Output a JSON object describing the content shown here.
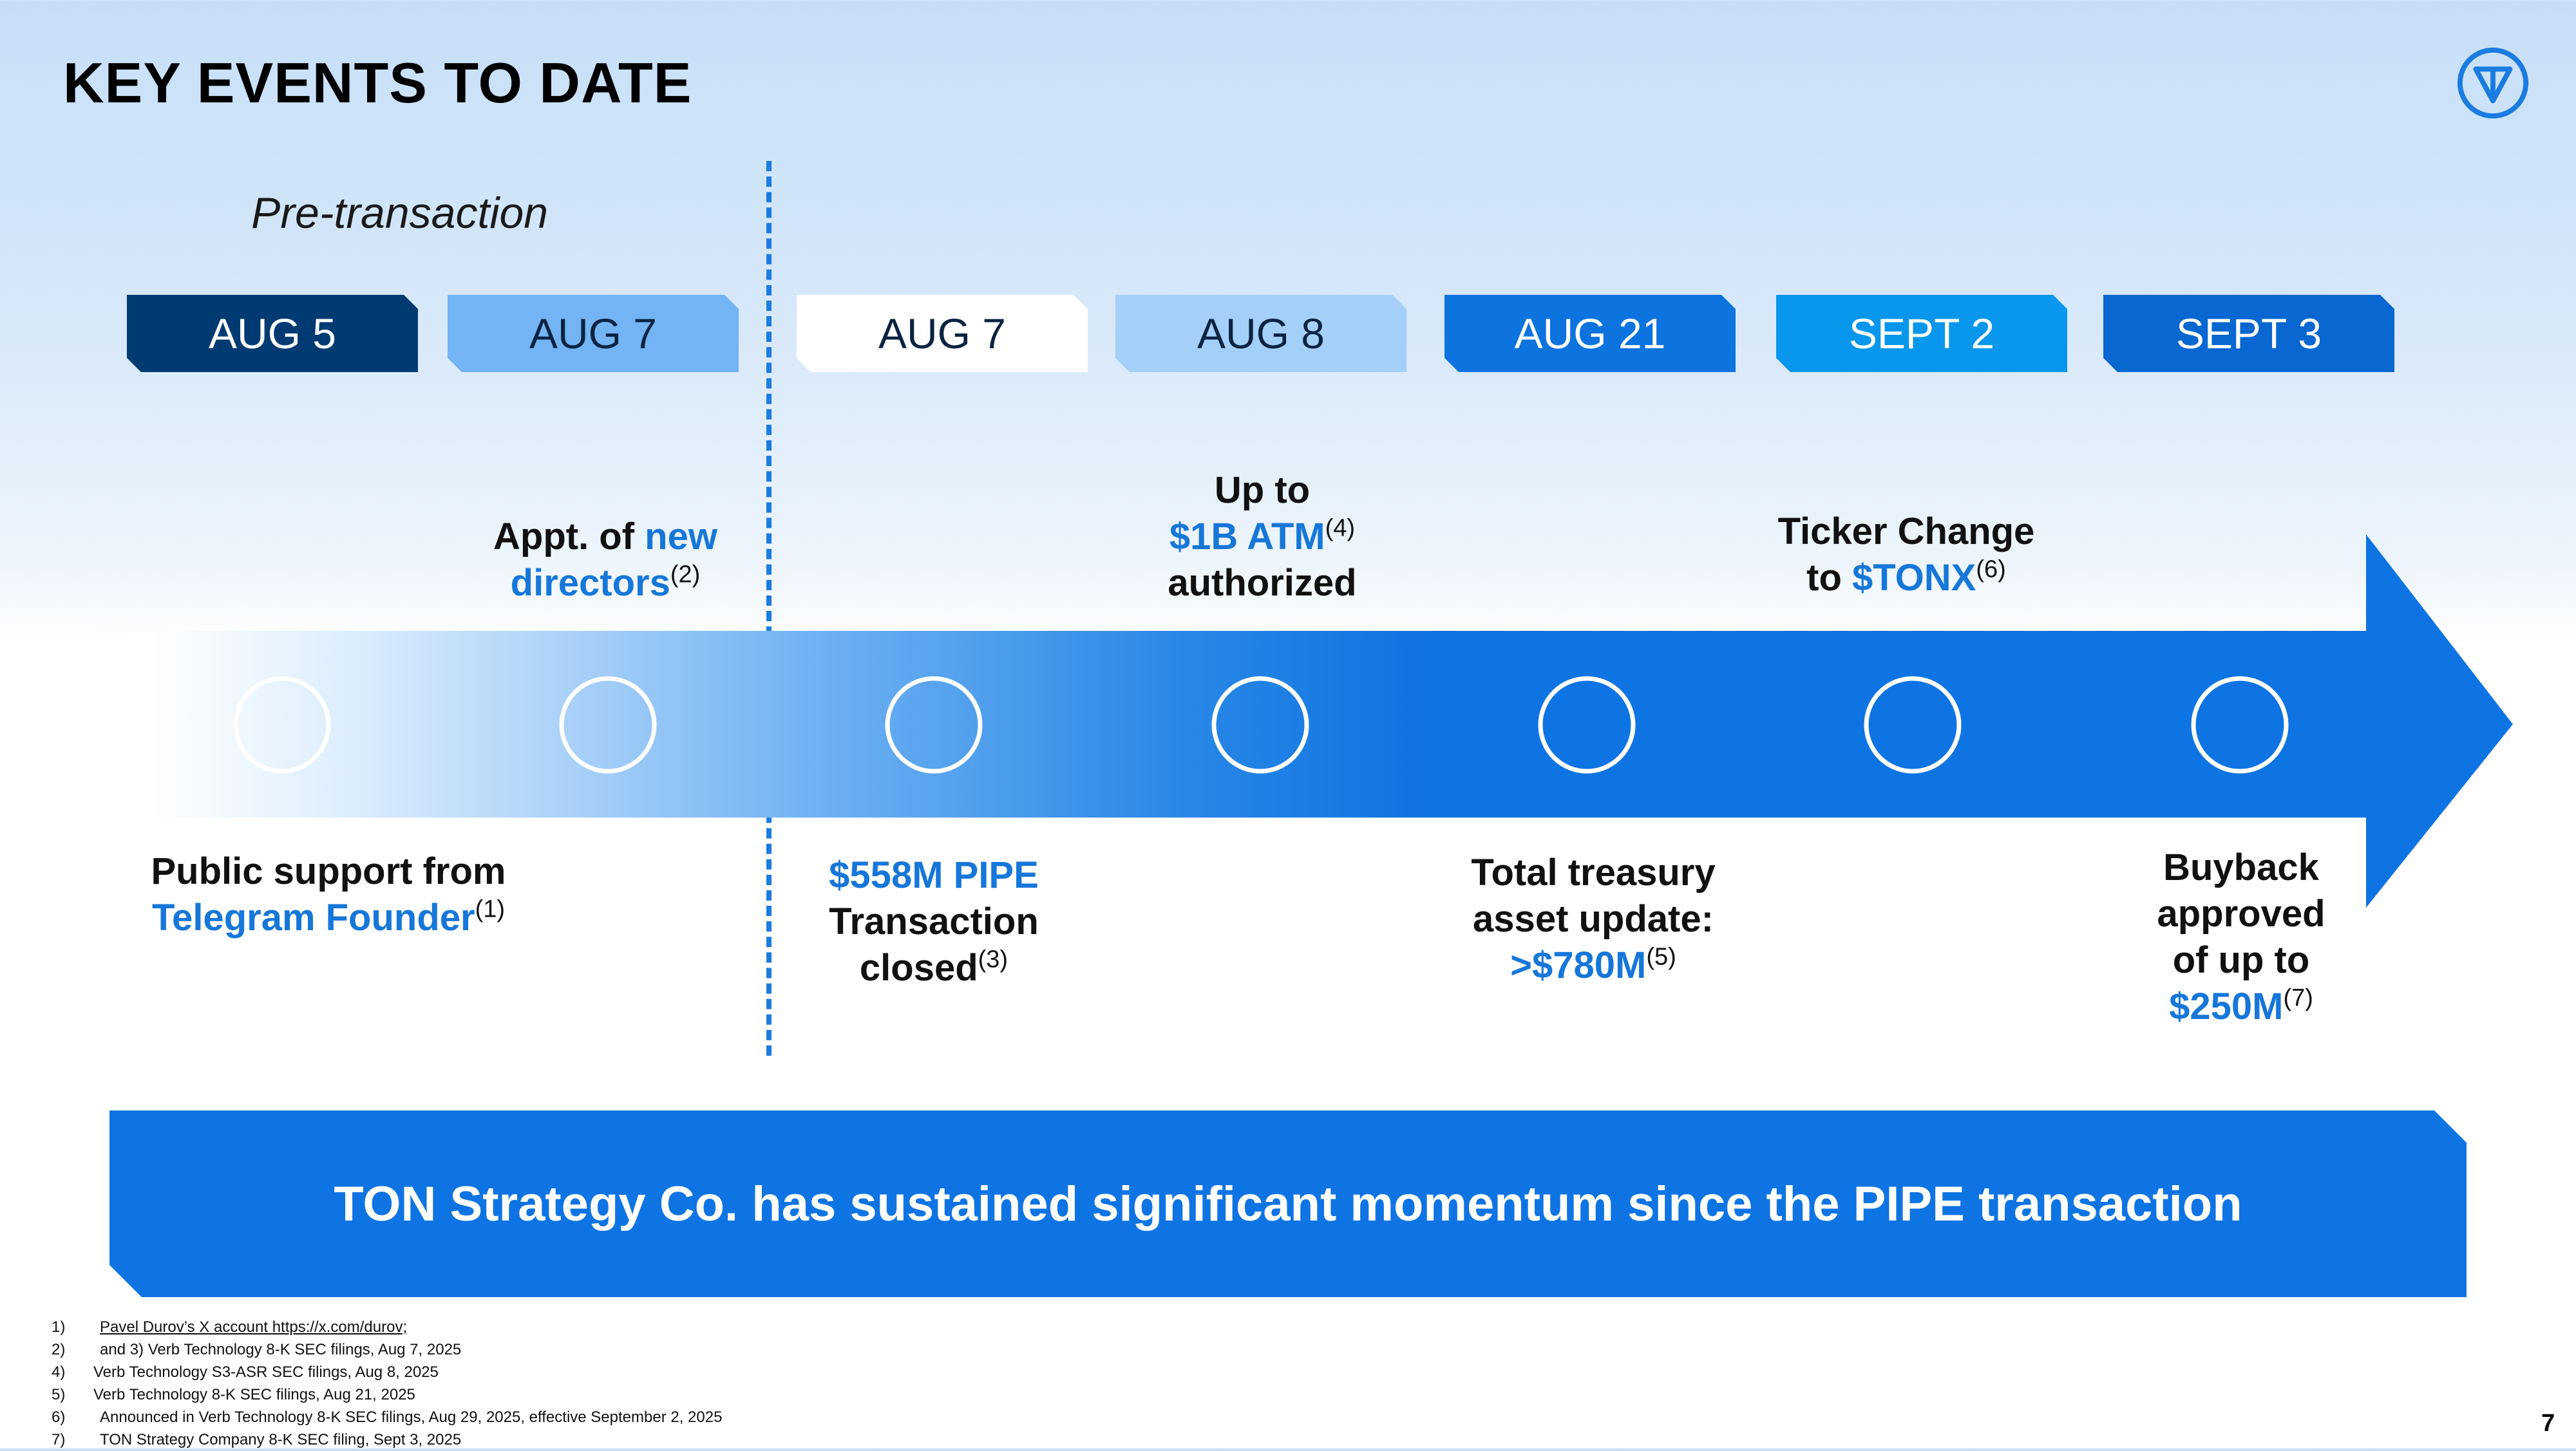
{
  "header": {
    "title": "KEY EVENTS TO DATE",
    "logo": "ton-diamond-logo-icon"
  },
  "pre_transaction_label": "Pre-transaction",
  "tabs": [
    {
      "label": "AUG 5",
      "bg": "#003a73",
      "fg": "#ffffff"
    },
    {
      "label": "AUG 7",
      "bg": "#72b4f4",
      "fg": "#0a2340"
    },
    {
      "label": "AUG 7",
      "bg": "#ffffff",
      "fg": "#0a2340"
    },
    {
      "label": "AUG 8",
      "bg": "#a3cff8",
      "fg": "#0a2340"
    },
    {
      "label": "AUG 21",
      "bg": "#0d73df",
      "fg": "#ffffff"
    },
    {
      "label": "SEPT 2",
      "bg": "#0897ec",
      "fg": "#ffffff"
    },
    {
      "label": "SEPT 3",
      "bg": "#0867d0",
      "fg": "#ffffff"
    }
  ],
  "events": {
    "aug5": {
      "l1": "Public support from",
      "l2": "Telegram Founder",
      "sup": "(1)"
    },
    "aug7_pre": {
      "l1a": "Appt. of ",
      "l1b": "new",
      "l2": "directors",
      "sup": "(2)"
    },
    "aug7_post": {
      "l1": "$558M PIPE",
      "l2": "Transaction",
      "l3": "closed",
      "sup": "(3)"
    },
    "aug8": {
      "l1": "Up to",
      "l2": "$1B ATM",
      "sup": "(4)",
      "l3": "authorized"
    },
    "aug21": {
      "l1": "Total treasury",
      "l2": "asset update:",
      "l3": ">$780M",
      "sup": "(5)"
    },
    "sept2": {
      "l1": "Ticker Change",
      "l2a": "to ",
      "l2b": "$TONX",
      "sup": "(6)"
    },
    "sept3": {
      "l1": "Buyback",
      "l2": "approved",
      "l3": "of up to",
      "l4": "$250M",
      "sup": "(7)"
    }
  },
  "banner": "TON Strategy Co. has sustained significant momentum since the PIPE transaction",
  "footnotes": [
    {
      "num": "1)",
      "text": "Pavel Durov’s X account https://x.com/durov;",
      "underline": true
    },
    {
      "num": "2)",
      "text": "and 3) Verb Technology 8-K SEC filings, Aug 7, 2025",
      "underline": false
    },
    {
      "num": "4)",
      "text": "Verb Technology S3-ASR  SEC filings, Aug 8, 2025",
      "underline": false
    },
    {
      "num": "5)",
      "text": "Verb Technology 8-K SEC filings, Aug 21, 2025",
      "underline": false
    },
    {
      "num": "6)",
      "text": "Announced in Verb Technology 8-K SEC filings, Aug 29, 2025, effective September 2, 2025",
      "underline": false
    },
    {
      "num": "7)",
      "text": "TON Strategy Company 8-K SEC filing, Sept 3, 2025",
      "underline": false
    }
  ],
  "page_number": "7",
  "colors": {
    "accent": "#1677d9",
    "arrow": "#0f74e3",
    "banner": "#0f74e3"
  }
}
